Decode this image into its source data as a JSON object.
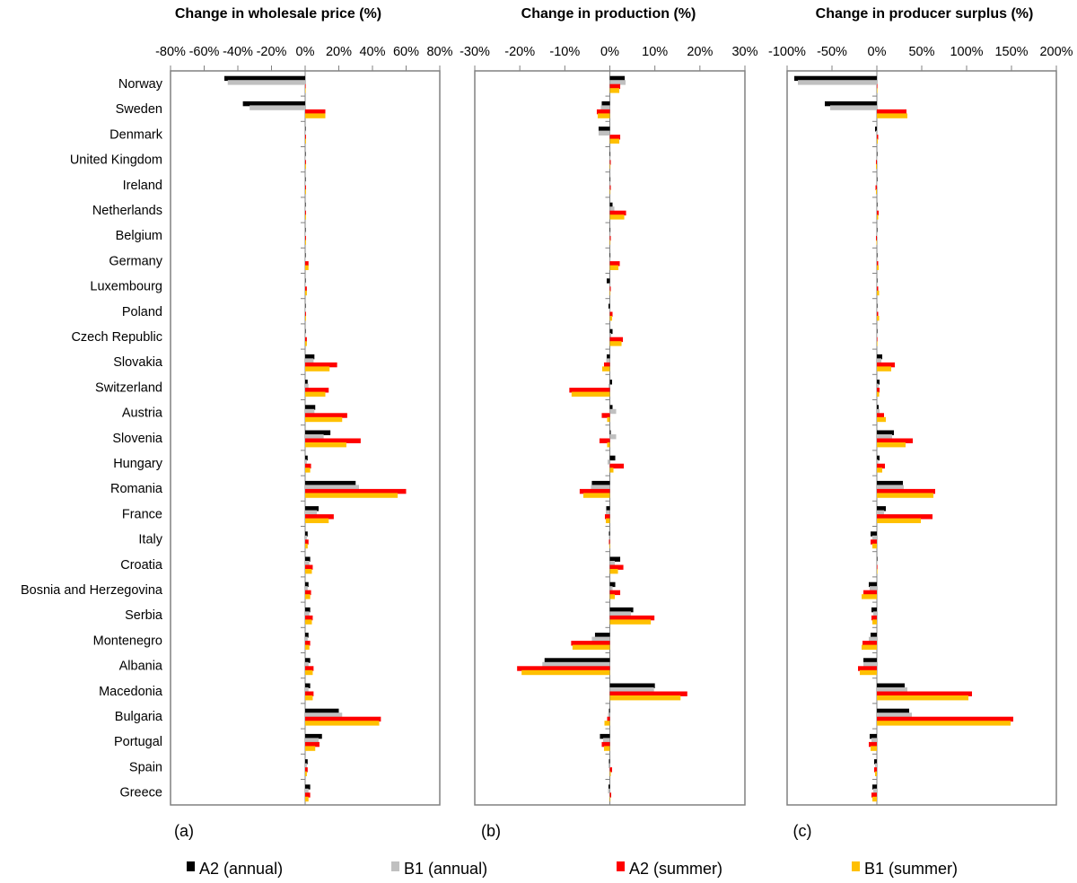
{
  "chart_data": {
    "type": "bar",
    "orientation": "horizontal",
    "categories": [
      "Norway",
      "Sweden",
      "Denmark",
      "United Kingdom",
      "Ireland",
      "Netherlands",
      "Belgium",
      "Germany",
      "Luxembourg",
      "Poland",
      "Czech Republic",
      "Slovakia",
      "Switzerland",
      "Austria",
      "Slovenia",
      "Hungary",
      "Romania",
      "France",
      "Italy",
      "Croatia",
      "Bosnia and Herzegovina",
      "Serbia",
      "Montenegro",
      "Albania",
      "Macedonia",
      "Bulgaria",
      "Portugal",
      "Spain",
      "Greece"
    ],
    "legend": {
      "placement": "bottom",
      "entries": [
        {
          "name": "A2 (annual)",
          "color": "#000000"
        },
        {
          "name": "B1 (annual)",
          "color": "#c0c0c0"
        },
        {
          "name": "A2 (summer)",
          "color": "#ff0000"
        },
        {
          "name": "B1 (summer)",
          "color": "#ffc000"
        }
      ]
    },
    "panels": [
      {
        "id": "a",
        "label": "(a)",
        "title": "Change in wholesale price (%)",
        "xlim": [
          -80,
          80
        ],
        "ticks": [
          -80,
          -60,
          -40,
          -20,
          0,
          20,
          40,
          60,
          80
        ],
        "tick_labels": [
          "-80%",
          "-60%",
          "-40%",
          "-20%",
          "0%",
          "20%",
          "40%",
          "60%",
          "80%"
        ],
        "series": [
          {
            "name": "A2 (annual)",
            "values": [
              -48,
              -37,
              0,
              0,
              0,
              0,
              0,
              0,
              0,
              0,
              0,
              5.5,
              1.5,
              6,
              15,
              1.5,
              30,
              8,
              1.5,
              3,
              2,
              3,
              2,
              3,
              3,
              20,
              10,
              1.5,
              3
            ]
          },
          {
            "name": "B1 (annual)",
            "values": [
              -46,
              -33,
              0,
              0,
              0,
              0,
              0,
              0,
              0,
              0,
              0,
              5,
              2,
              5.5,
              11,
              1,
              32,
              7,
              1,
              2.5,
              1.5,
              2.5,
              1.5,
              2,
              2,
              22,
              8,
              1,
              2
            ]
          },
          {
            "name": "A2 (summer)",
            "values": [
              0,
              12,
              0.5,
              0.5,
              0.5,
              0.5,
              0.5,
              2,
              1,
              0.5,
              1,
              19,
              14,
              25,
              33,
              3.5,
              60,
              17,
              2,
              4.5,
              3.5,
              4.5,
              3,
              5,
              5,
              45,
              8.5,
              1.5,
              3
            ]
          },
          {
            "name": "B1 (summer)",
            "values": [
              0,
              12,
              0.5,
              0.5,
              0.5,
              0.5,
              0.5,
              2,
              1,
              0.5,
              1,
              14.5,
              12,
              22,
              24.5,
              3,
              55,
              14,
              1.5,
              4,
              3,
              4,
              2.5,
              4.5,
              4.5,
              44,
              6,
              1,
              2
            ]
          }
        ]
      },
      {
        "id": "b",
        "label": "(b)",
        "title": "Change in production (%)",
        "xlim": [
          -30,
          30
        ],
        "ticks": [
          -30,
          -20,
          -10,
          0,
          10,
          20,
          30
        ],
        "tick_labels": [
          "-30%",
          "-20%",
          "-10%",
          "0%",
          "10%",
          "20%",
          "30%"
        ],
        "series": [
          {
            "name": "A2 (annual)",
            "values": [
              3.3,
              -1.8,
              -2.5,
              0,
              0,
              0.6,
              0,
              0,
              -0.7,
              -0.3,
              0.6,
              -0.7,
              0.5,
              0.6,
              0.2,
              1.2,
              -4,
              -0.8,
              -0.2,
              2.3,
              1.2,
              5.2,
              -3.3,
              -14.5,
              10,
              -0.2,
              -2.2,
              -0.2,
              -0.3
            ]
          },
          {
            "name": "B1 (annual)",
            "values": [
              3.5,
              -2,
              -2.5,
              0,
              0,
              1,
              0,
              0,
              0,
              0,
              0.3,
              -0.8,
              -0.3,
              1.4,
              1.4,
              -0.5,
              -4.2,
              -0.9,
              -0.2,
              1.1,
              0.6,
              4.7,
              -4,
              -15,
              9.8,
              -0.4,
              -1.5,
              -0.3,
              -0.4
            ]
          },
          {
            "name": "A2 (summer)",
            "values": [
              2.3,
              -2.9,
              2.3,
              0.2,
              0.2,
              3.6,
              0.2,
              2.2,
              0.2,
              0.6,
              2.9,
              -1.3,
              -9,
              -1.8,
              -2.3,
              3.1,
              -6.7,
              -1.1,
              -0.2,
              3,
              2.3,
              9.9,
              -8.6,
              -20.6,
              17.2,
              -0.6,
              -1.8,
              0.5,
              0.3
            ]
          },
          {
            "name": "B1 (summer)",
            "values": [
              2.1,
              -2.7,
              2.1,
              0.1,
              0.1,
              3.2,
              0.1,
              1.9,
              0.1,
              0.5,
              2.6,
              -1.7,
              -8.5,
              -0.6,
              -0.6,
              0.8,
              -5.9,
              -0.9,
              -0.1,
              1.8,
              1.1,
              9.1,
              -8.3,
              -19.6,
              15.7,
              -1.2,
              -1.3,
              0.2,
              0.1
            ]
          }
        ]
      },
      {
        "id": "c",
        "label": "(c)",
        "title": "Change in producer surplus (%)",
        "xlim": [
          -100,
          200
        ],
        "ticks": [
          -100,
          -50,
          0,
          50,
          100,
          150,
          200
        ],
        "tick_labels": [
          "-100%",
          "-50%",
          "0%",
          "50%",
          "100%",
          "150%",
          "200%"
        ],
        "series": [
          {
            "name": "A2 (annual)",
            "values": [
              -92,
              -58,
              -2,
              0,
              0,
              0,
              0,
              0,
              0,
              0,
              0,
              6,
              3,
              2,
              19,
              3,
              29,
              10,
              -7,
              0.5,
              -9,
              -6,
              -7,
              -15,
              31,
              36,
              -8,
              -3,
              -5
            ]
          },
          {
            "name": "B1 (annual)",
            "values": [
              -88,
              -52,
              -1,
              0,
              0,
              0,
              0,
              0,
              0,
              0,
              0,
              5,
              2,
              3,
              17,
              1.5,
              30,
              8,
              -5,
              0.3,
              -8,
              -4,
              -9,
              -15,
              34,
              39,
              -6,
              -2,
              -4
            ]
          },
          {
            "name": "A2 (summer)",
            "values": [
              0,
              33,
              1.5,
              -1,
              -1.5,
              2,
              -1,
              1.5,
              1.5,
              1.5,
              0.5,
              20,
              3,
              8,
              40,
              9,
              65,
              62,
              -7,
              0.3,
              -15,
              -6,
              -16,
              -21,
              106,
              152,
              -9,
              -3,
              -6
            ]
          },
          {
            "name": "B1 (summer)",
            "values": [
              0,
              34,
              1,
              -1,
              -1,
              1.5,
              -0.5,
              2,
              2.5,
              2.5,
              0.5,
              16,
              2.5,
              10,
              32,
              6,
              63,
              49,
              -5,
              0.2,
              -17,
              -5,
              -17,
              -19,
              102,
              149,
              -7,
              -2,
              -5
            ]
          }
        ]
      }
    ]
  }
}
